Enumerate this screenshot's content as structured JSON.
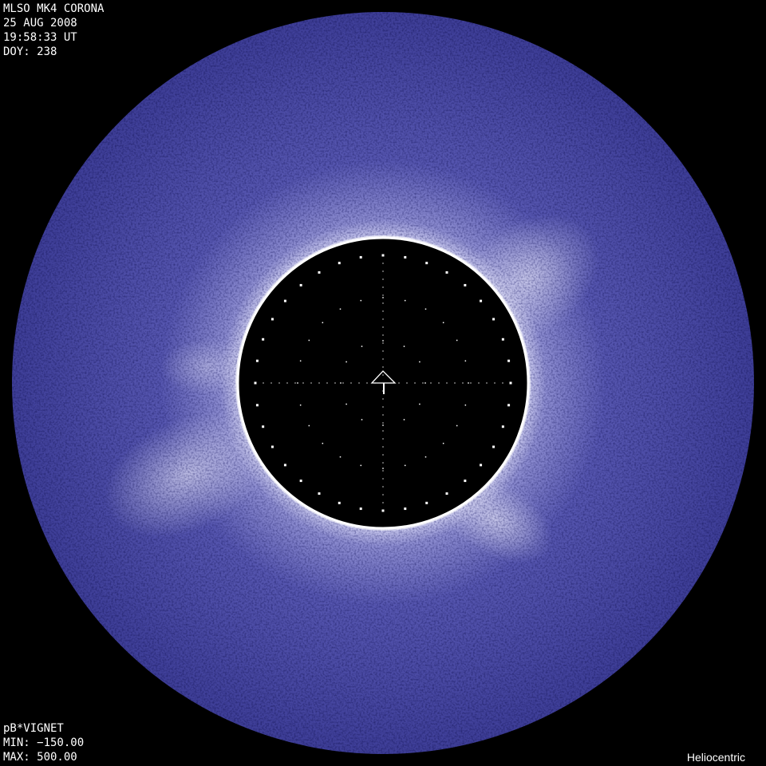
{
  "header": {
    "title": "MLSO MK4 CORONA",
    "date": "25 AUG 2008",
    "time": "19:58:33 UT",
    "doy": "DOY: 238"
  },
  "footer": {
    "product": "pB*VIGNET",
    "min": "MIN: −150.00",
    "max": "MAX: 500.00",
    "projection": "Heliocentric"
  },
  "colors": {
    "background": "#000000",
    "corona": "#4a4aa6",
    "corona_bright": "#c8c8ec",
    "occulter_rim": "#ffffff"
  },
  "icons": [
    "solar-north-arrow-icon"
  ]
}
